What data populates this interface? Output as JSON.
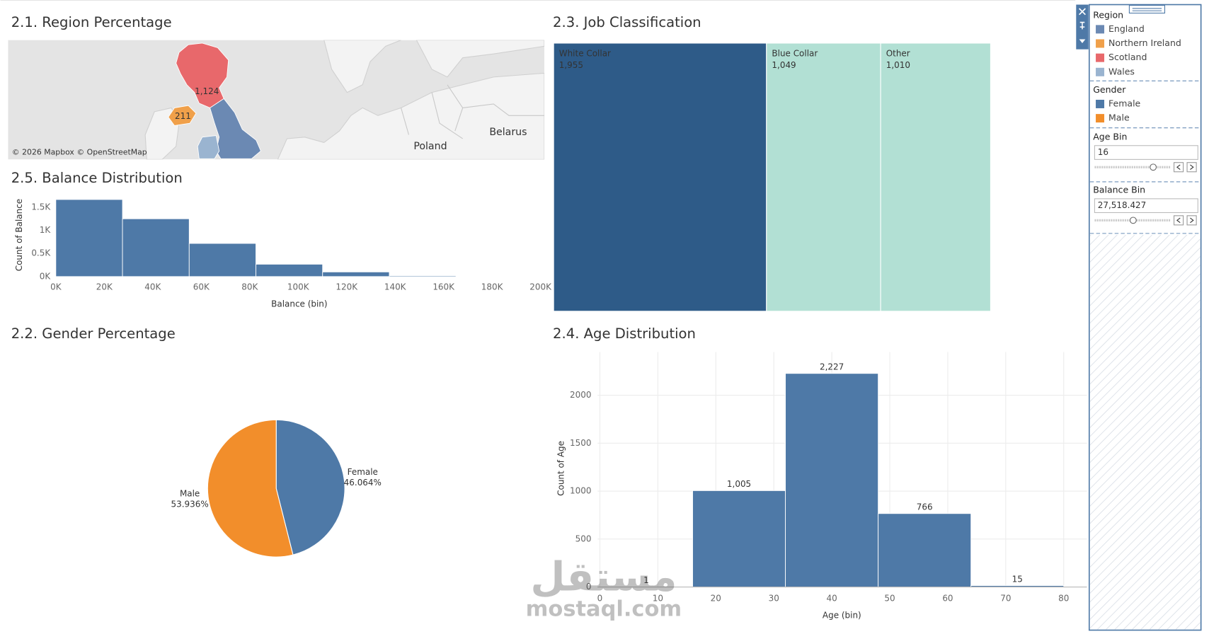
{
  "chart_data": [
    {
      "type": "map",
      "title": "2.1. Region Percentage",
      "categories": [
        "England",
        "Northern Ireland",
        "Scotland",
        "Wales"
      ],
      "colors": [
        "#6b89b3",
        "#f0a04a",
        "#e8686b",
        "#9ab4d0"
      ],
      "values": [
        null,
        211,
        1124,
        null
      ],
      "value_labels": [
        null,
        "211",
        "1,124",
        null
      ],
      "place_labels": [
        "Poland",
        "Belarus"
      ],
      "attribution": "© 2026 Mapbox © OpenStreetMap"
    },
    {
      "type": "histogram",
      "title": "2.5. Balance Distribution",
      "bins": [
        0,
        27518,
        55037,
        82555,
        110074,
        137592,
        165111
      ],
      "counts": [
        1667,
        1250,
        717,
        267,
        100,
        20
      ],
      "color": "#4e79a7",
      "xlim": [
        0,
        200000
      ],
      "xticks": [
        {
          "value": 0,
          "label": "0K"
        },
        {
          "value": 20000,
          "label": "20K"
        },
        {
          "value": 40000,
          "label": "40K"
        },
        {
          "value": 60000,
          "label": "60K"
        },
        {
          "value": 80000,
          "label": "80K"
        },
        {
          "value": 100000,
          "label": "100K"
        },
        {
          "value": 120000,
          "label": "120K"
        },
        {
          "value": 140000,
          "label": "140K"
        },
        {
          "value": 160000,
          "label": "160K"
        },
        {
          "value": 180000,
          "label": "180K"
        },
        {
          "value": 200000,
          "label": "200K"
        }
      ],
      "ylim": [
        0,
        1700
      ],
      "yticks": [
        {
          "value": 0,
          "label": "0K"
        },
        {
          "value": 500,
          "label": "0.5K"
        },
        {
          "value": 1000,
          "label": "1K"
        },
        {
          "value": 1500,
          "label": "1.5K"
        }
      ],
      "x_label": "Balance (bin)",
      "y_label": "Count of Balance",
      "grid": false
    },
    {
      "type": "treemap",
      "title": "2.3. Job Classification",
      "categories": [
        "White Collar",
        "Blue Collar",
        "Other"
      ],
      "values": [
        1955,
        1049,
        1010
      ],
      "value_labels": [
        "1,955",
        "1,049",
        "1,010"
      ],
      "colors": [
        "#2e5b88",
        "#b2e0d4",
        "#b2e0d4"
      ],
      "text_colors": [
        "#ffffff",
        "#333333",
        "#333333"
      ]
    },
    {
      "type": "pie",
      "title": "2.2. Gender Percentage",
      "categories": [
        "Female",
        "Male"
      ],
      "values": [
        46.064,
        53.936
      ],
      "value_labels": [
        "46.064%",
        "53.936%"
      ],
      "colors": [
        "#4e79a7",
        "#f28e2b"
      ]
    },
    {
      "type": "histogram",
      "title": "2.4. Age Distribution",
      "bins": [
        0,
        16,
        32,
        48,
        64,
        80
      ],
      "counts": [
        1,
        1005,
        2227,
        766,
        15
      ],
      "value_labels": [
        "1",
        "1,005",
        "2,227",
        "766",
        "15"
      ],
      "color": "#4e79a7",
      "xlim": [
        0,
        84
      ],
      "xticks": [
        0,
        10,
        20,
        30,
        40,
        50,
        60,
        70,
        80
      ],
      "ylim": [
        0,
        2450
      ],
      "yticks": [
        0,
        500,
        1000,
        1500,
        2000
      ],
      "x_label": "Age (bin)",
      "y_label": "Count of Age",
      "grid": true
    }
  ],
  "filter_panel": {
    "region_title": "Region",
    "gender_title": "Gender",
    "age_bin": {
      "title": "Age Bin",
      "value": "16"
    },
    "balance_bin": {
      "title": "Balance Bin",
      "value": "27,518.427"
    }
  },
  "watermark": {
    "arabic": "مستقل",
    "latin": "mostaql.com"
  }
}
